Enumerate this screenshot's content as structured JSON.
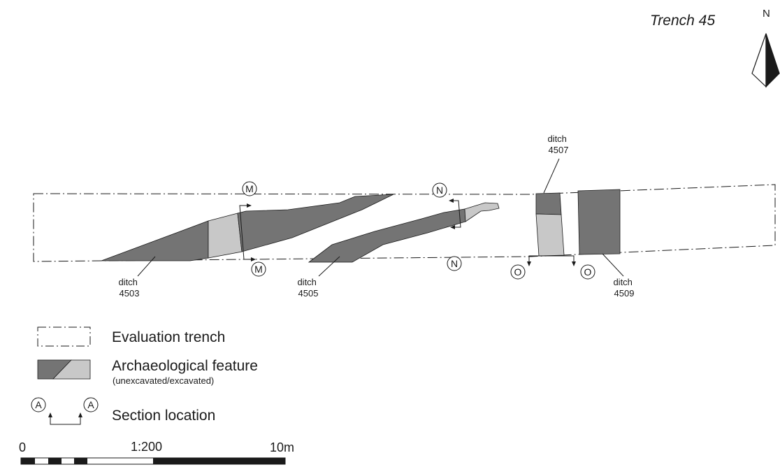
{
  "title": "Trench 45",
  "north_label": "N",
  "colors": {
    "unexcavated": "#747474",
    "excavated": "#c8c8c8",
    "ink": "#1a1a1a"
  },
  "features": [
    {
      "id": "ditch_4503",
      "line1": "ditch",
      "line2": "4503"
    },
    {
      "id": "ditch_4505",
      "line1": "ditch",
      "line2": "4505"
    },
    {
      "id": "ditch_4507",
      "line1": "ditch",
      "line2": "4507"
    },
    {
      "id": "ditch_4509",
      "line1": "ditch",
      "line2": "4509"
    }
  ],
  "sections": {
    "M": "M",
    "N": "N",
    "O": "O"
  },
  "legend": {
    "trench_label": "Evaluation trench",
    "feature_label": "Archaeological feature",
    "feature_sublabel": "(unexcavated/excavated)",
    "section_label": "Section location",
    "section_marker": "A"
  },
  "scale": {
    "ratio": "1:200",
    "start_label": "0",
    "end_label": "10m"
  }
}
